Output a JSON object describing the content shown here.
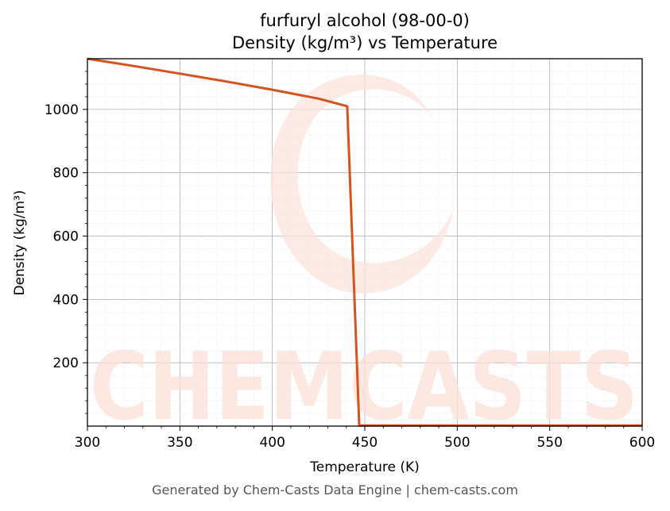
{
  "chart_data": {
    "type": "line",
    "title": "furfuryl alcohol (98-00-0)",
    "subtitle": "Density (kg/m³) vs Temperature",
    "xlabel": "Temperature (K)",
    "ylabel": "Density (kg/m³)",
    "xlim": [
      300,
      600
    ],
    "ylim": [
      0,
      1160
    ],
    "xticks": [
      300,
      350,
      400,
      450,
      500,
      550,
      600
    ],
    "yticks": [
      200,
      400,
      600,
      800,
      1000
    ],
    "grid": true,
    "legend": "none",
    "series": [
      {
        "color": "#d4531f",
        "x": [
          300,
          325,
          350,
          375,
          400,
          425,
          440.5,
          447,
          450,
          500,
          550,
          600
        ],
        "y": [
          1160,
          1137,
          1113,
          1088,
          1062,
          1034,
          1010,
          2,
          2,
          2,
          2,
          2
        ]
      }
    ]
  },
  "watermark": {
    "text": "CHEMCASTS",
    "color": "#f8c4b8"
  },
  "footer": {
    "text": "Generated by Chem-Casts Data Engine | chem-casts.com"
  }
}
